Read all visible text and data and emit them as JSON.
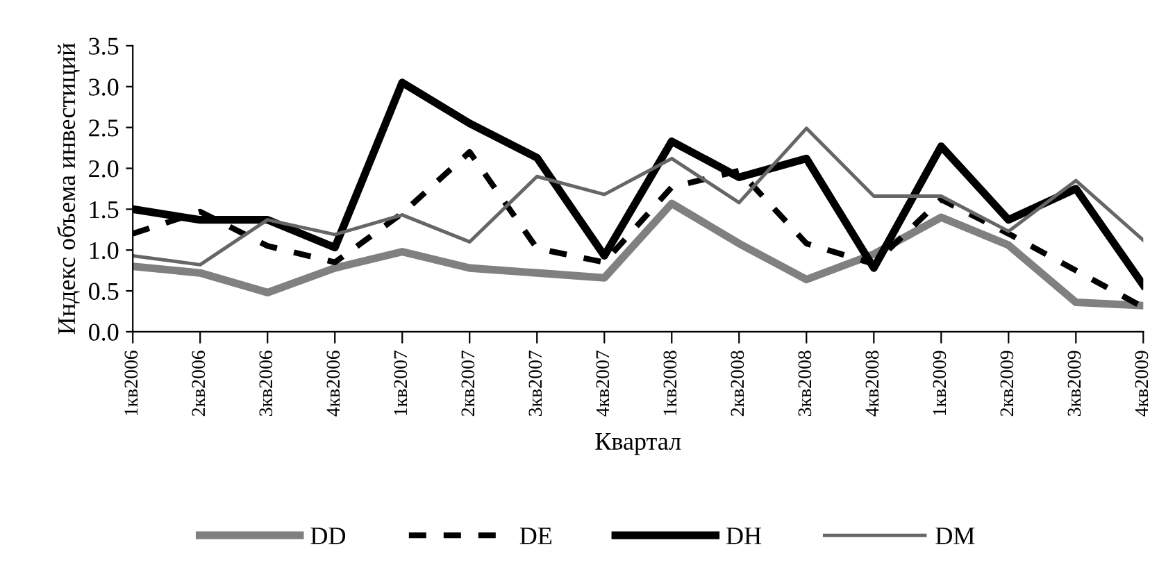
{
  "chart_data": {
    "type": "line",
    "xlabel": "Квартал",
    "ylabel": "Индекс объема инвестиций",
    "categories": [
      "1кв2006",
      "2кв2006",
      "3кв2006",
      "4кв2006",
      "1кв2007",
      "2кв2007",
      "3кв2007",
      "4кв2007",
      "1кв2008",
      "2кв2008",
      "3кв2008",
      "4кв2008",
      "1кв2009",
      "2кв2009",
      "3кв2009",
      "4кв2009"
    ],
    "ylim": [
      0,
      3.5
    ],
    "yticks": [
      {
        "value": 0,
        "label": "0.0"
      },
      {
        "value": 0.5,
        "label": "0.5"
      },
      {
        "value": 1,
        "label": "1.0"
      },
      {
        "value": 1.5,
        "label": "1.5"
      },
      {
        "value": 2,
        "label": "2.0"
      },
      {
        "value": 2.5,
        "label": "2.5"
      },
      {
        "value": 3,
        "label": "3.0"
      },
      {
        "value": 3.5,
        "label": "3.5"
      }
    ],
    "grid": false,
    "legend": "bottom",
    "marker": "none",
    "series": [
      {
        "name": "DD",
        "color": "#808080",
        "line_style": "solid",
        "values": [
          0.8,
          0.72,
          0.48,
          0.78,
          0.98,
          0.78,
          0.72,
          0.66,
          1.57,
          1.08,
          0.64,
          0.95,
          1.4,
          1.06,
          0.36,
          0.32
        ]
      },
      {
        "name": "DE",
        "color": "#000000",
        "line_style": "dashed",
        "values": [
          1.2,
          1.47,
          1.05,
          0.85,
          1.45,
          2.2,
          1.02,
          0.85,
          1.77,
          1.97,
          1.08,
          0.83,
          1.62,
          1.2,
          0.75,
          0.3
        ]
      },
      {
        "name": "DH",
        "color": "#000000",
        "line_style": "solid",
        "values": [
          1.5,
          1.37,
          1.37,
          1.03,
          3.05,
          2.55,
          2.13,
          0.93,
          2.33,
          1.89,
          2.12,
          0.78,
          2.27,
          1.37,
          1.75,
          0.57
        ]
      },
      {
        "name": "DM",
        "color": "#666666",
        "line_style": "solid",
        "values": [
          0.93,
          0.82,
          1.37,
          1.19,
          1.43,
          1.1,
          1.9,
          1.68,
          2.12,
          1.58,
          2.49,
          1.66,
          1.66,
          1.23,
          1.85,
          1.12
        ]
      }
    ]
  }
}
